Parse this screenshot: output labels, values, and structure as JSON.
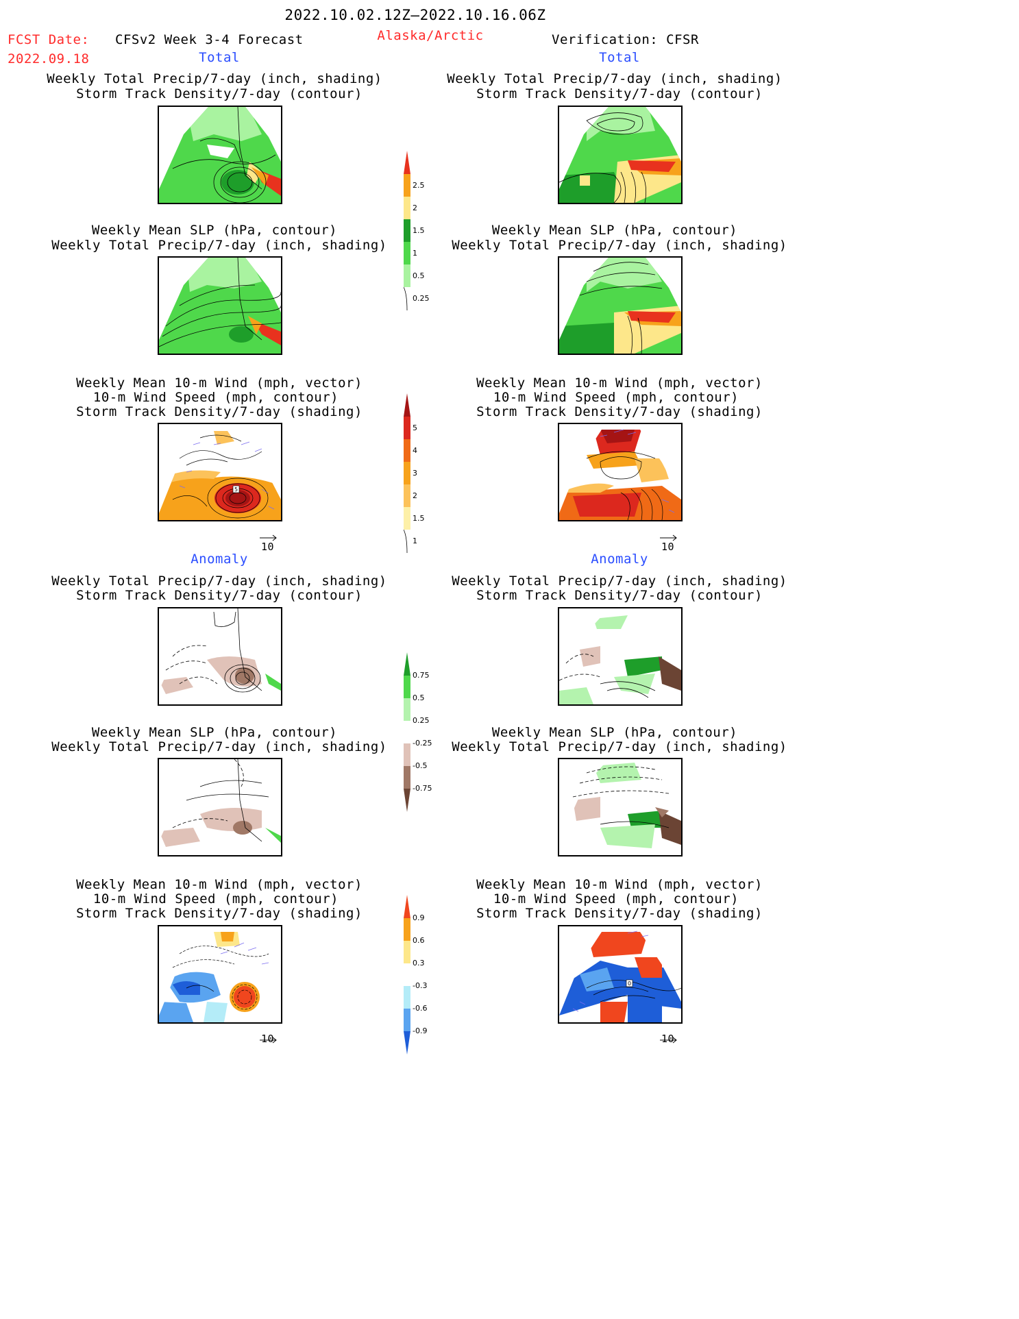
{
  "header": {
    "date_range": "2022.10.02.12Z—2022.10.16.06Z",
    "fcst_label": "FCST Date:",
    "fcst_date": "2022.09.18",
    "model_title": "CFSv2 Week 3-4 Forecast",
    "region": "Alaska/Arctic",
    "verification": "Verification: CFSR"
  },
  "sections": {
    "total_label": "Total",
    "anomaly_label": "Anomaly"
  },
  "panels": {
    "p1": [
      "Weekly Total Precip/7-day (inch, shading)",
      "Storm Track Density/7-day (contour)"
    ],
    "p2": [
      "Weekly Mean SLP (hPa, contour)",
      "Weekly Total Precip/7-day (inch, shading)"
    ],
    "p3": [
      "Weekly Mean 10-m Wind (mph, vector)",
      "10-m Wind Speed (mph, contour)",
      "Storm Track Density/7-day (shading)"
    ]
  },
  "vector_ref": "10",
  "map_labels": {
    "contour_5": "5",
    "contour_0": "0"
  },
  "colorbars": {
    "precip": {
      "labels": [
        "2.5",
        "2",
        "1.5",
        "1",
        "0.5",
        "0.25"
      ],
      "colors": [
        "#e8321e",
        "#f7a21b",
        "#fde78a",
        "#1e9e2a",
        "#4fd84b",
        "#a9f3a0"
      ]
    },
    "storm": {
      "labels": [
        "5",
        "4",
        "3",
        "2",
        "1.5",
        "1"
      ],
      "colors": [
        "#a51414",
        "#dc281e",
        "#f06a16",
        "#f7a21b",
        "#fcc25a",
        "#fdf0a8"
      ]
    },
    "precip_anom": {
      "labels": [
        "0.75",
        "0.5",
        "0.25",
        "-0.25",
        "-0.5",
        "-0.75"
      ],
      "colors": [
        "#1e9e2a",
        "#4fd84b",
        "#b4f3ae",
        "#ffffff",
        "#e0c2b8",
        "#a07866",
        "#6b4434"
      ]
    },
    "wind_anom": {
      "labels": [
        "0.9",
        "0.6",
        "0.3",
        "-0.3",
        "-0.6",
        "-0.9"
      ],
      "colors": [
        "#f0461e",
        "#f7a21b",
        "#fde78a",
        "#ffffff",
        "#b4ecf8",
        "#5aa4f0",
        "#1e5ed8"
      ]
    }
  },
  "colors": {
    "title_red": "#ff2a2a",
    "section_blue": "#2a4dff"
  }
}
